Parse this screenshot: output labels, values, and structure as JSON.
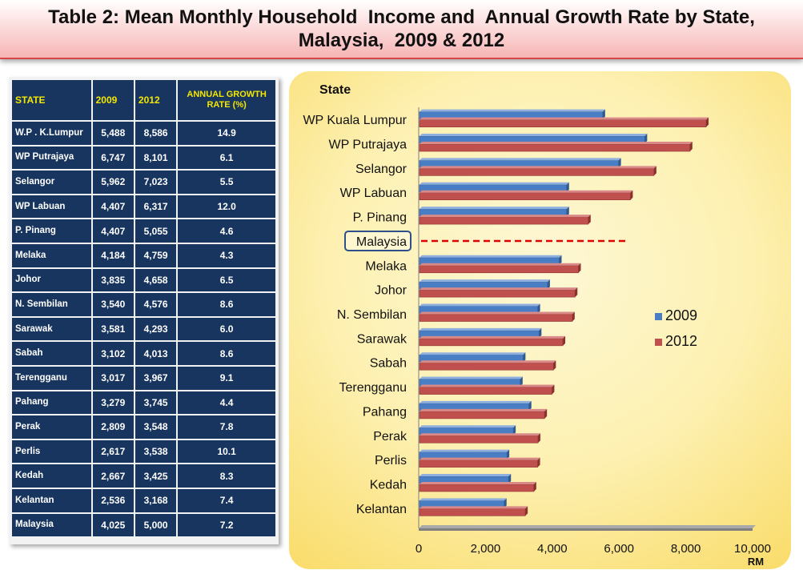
{
  "title": {
    "line1": "Table 2: Mean Monthly Household  Income and  Annual Growth Rate by State,",
    "line2": "Malaysia,  2009 & 2012"
  },
  "table": {
    "headers": [
      "STATE",
      "2009",
      "2012",
      "ANNUAL GROWTH RATE (%)"
    ],
    "rows": [
      [
        "W.P . K.Lumpur",
        "5,488",
        "8,586",
        "14.9"
      ],
      [
        "WP Putrajaya",
        "6,747",
        "8,101",
        "6.1"
      ],
      [
        "Selangor",
        "5,962",
        "7,023",
        "5.5"
      ],
      [
        "WP Labuan",
        "4,407",
        "6,317",
        "12.0"
      ],
      [
        "P. Pinang",
        "4,407",
        "5,055",
        "4.6"
      ],
      [
        "Melaka",
        "4,184",
        "4,759",
        "4.3"
      ],
      [
        "Johor",
        "3,835",
        "4,658",
        "6.5"
      ],
      [
        "N. Sembilan",
        "3,540",
        "4,576",
        "8.6"
      ],
      [
        "Sarawak",
        "3,581",
        "4,293",
        "6.0"
      ],
      [
        "Sabah",
        "3,102",
        "4,013",
        "8.6"
      ],
      [
        "Terengganu",
        "3,017",
        "3,967",
        "9.1"
      ],
      [
        "Pahang",
        "3,279",
        "3,745",
        "4.4"
      ],
      [
        "Perak",
        "2,809",
        "3,548",
        "7.8"
      ],
      [
        "Perlis",
        "2,617",
        "3,538",
        "10.1"
      ],
      [
        "Kedah",
        "2,667",
        "3,425",
        "8.3"
      ],
      [
        "Kelantan",
        "2,536",
        "3,168",
        "7.4"
      ],
      [
        "Malaysia",
        "4,025",
        "5,000",
        "7.2"
      ]
    ]
  },
  "chart_data": {
    "type": "bar",
    "orientation": "horizontal",
    "title": "",
    "ylabel": "State",
    "xlabel": "RM",
    "xlim": [
      0,
      10000
    ],
    "xticks": [
      0,
      2000,
      4000,
      6000,
      8000,
      10000
    ],
    "xtick_labels": [
      "0",
      "2,000",
      "4,000",
      "6,000",
      "8,000",
      "10,000"
    ],
    "categories": [
      "WP Kuala Lumpur",
      "WP Putrajaya",
      "Selangor",
      "WP Labuan",
      "P. Pinang",
      "Malaysia",
      "Melaka",
      "Johor",
      "N. Sembilan",
      "Sarawak",
      "Sabah",
      "Terengganu",
      "Pahang",
      "Perak",
      "Perlis",
      "Kedah",
      "Kelantan"
    ],
    "series": [
      {
        "name": "2009",
        "color": "#4a7ec4",
        "values": [
          5488,
          6747,
          5962,
          4407,
          4407,
          null,
          4184,
          3835,
          3540,
          3581,
          3102,
          3017,
          3279,
          2809,
          2617,
          2667,
          2536
        ]
      },
      {
        "name": "2012",
        "color": "#c0504d",
        "values": [
          8586,
          8101,
          7023,
          6317,
          5055,
          null,
          4759,
          4658,
          4576,
          4293,
          4013,
          3967,
          3745,
          3548,
          3538,
          3425,
          3168
        ]
      }
    ],
    "reference_line": {
      "category": "Malaysia",
      "value": 6300,
      "color": "#e00000",
      "style": "dashed"
    },
    "highlight_category": "Malaysia",
    "legend_position": "right"
  }
}
